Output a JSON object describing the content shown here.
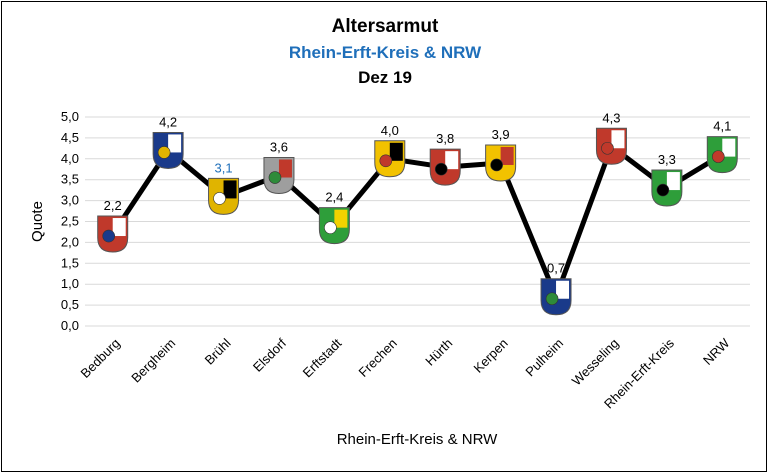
{
  "chart_data": {
    "type": "line",
    "title": "Altersarmut",
    "subtitle": "Rhein-Erft-Kreis & NRW",
    "period": "Dez 19",
    "xlabel": "Rhein-Erft-Kreis & NRW",
    "ylabel": "Quote",
    "ylim": [
      0,
      5
    ],
    "yticks": [
      "0,0",
      "0,5",
      "1,0",
      "1,5",
      "2,0",
      "2,5",
      "3,0",
      "3,5",
      "4,0",
      "4,5",
      "5,0"
    ],
    "categories": [
      "Bedburg",
      "Bergheim",
      "Brühl",
      "Elsdorf",
      "Erftstadt",
      "Frechen",
      "Hürth",
      "Kerpen",
      "Pulheim",
      "Wesseling",
      "Rhein-Erft-Kreis",
      "NRW"
    ],
    "values": [
      2.2,
      4.2,
      3.1,
      3.6,
      2.4,
      4.0,
      3.8,
      3.9,
      0.7,
      4.3,
      3.3,
      4.1
    ],
    "value_labels": [
      "2,2",
      "4,2",
      "3,1",
      "3,6",
      "2,4",
      "4,0",
      "3,8",
      "3,9",
      "0,7",
      "4,3",
      "3,3",
      "4,1"
    ],
    "line_color": "#000000",
    "highlight_label_color": "#1f6fba",
    "highlight_index": 2,
    "grid": true,
    "legend": "none",
    "markers": "municipal coat-of-arms icons"
  },
  "colors": {
    "subtitle": "#1f6fba",
    "grid": "#d9d9d9",
    "line": "#000000"
  }
}
